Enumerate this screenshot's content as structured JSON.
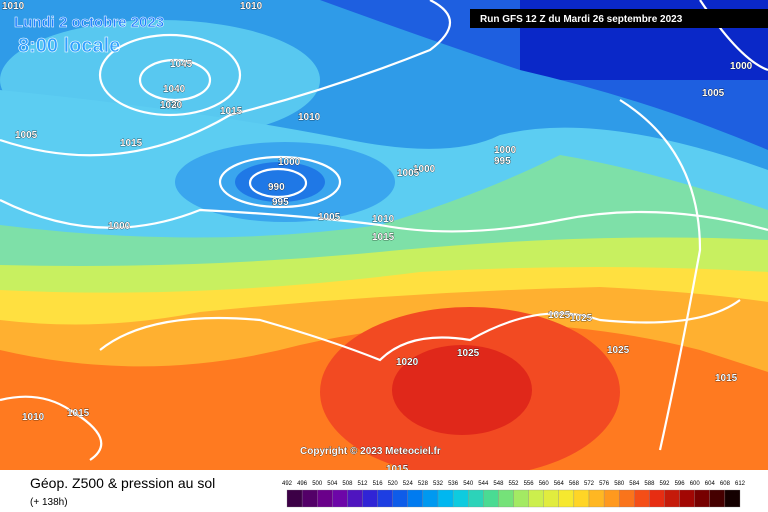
{
  "header": {
    "date": "Lundi 2 octobre 2023",
    "time": "8:00 locale",
    "run": "Run GFS 12 Z du Mardi 26 septembre 2023"
  },
  "copyright": "Copyright © 2023 Meteociel.fr",
  "footer": {
    "title": "Géop. Z500 & pression au sol",
    "lead": "(+ 138h)"
  },
  "colorbar": {
    "labels": [
      492,
      496,
      500,
      504,
      508,
      512,
      516,
      520,
      524,
      528,
      532,
      536,
      540,
      544,
      548,
      552,
      556,
      560,
      564,
      568,
      572,
      576,
      580,
      584,
      588,
      592,
      596,
      600,
      604,
      608,
      612
    ]
  },
  "isobars": [
    "1010",
    "1010",
    "1045",
    "1040",
    "1030",
    "1020",
    "1015",
    "1010",
    "1005",
    "1015",
    "1000",
    "990",
    "995",
    "1000",
    "1005",
    "1010",
    "1015",
    "1000",
    "1005",
    "1000",
    "995",
    "1000",
    "1005",
    "1025",
    "1025",
    "1025",
    "1020",
    "1025",
    "1015",
    "1010",
    "1015",
    "1015"
  ]
}
